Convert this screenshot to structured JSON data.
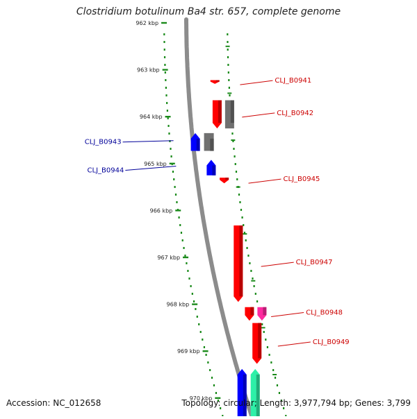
{
  "title": "Clostridium botulinum Ba4 str. 657, complete genome",
  "footer": {
    "accession": "Accession: NC_012658",
    "summary": "Topology: circular; Length: 3,977,794 bp; Genes: 3,799"
  },
  "axis": {
    "unit": "kbp",
    "ticks": [
      "962 kbp",
      "963 kbp",
      "964 kbp",
      "965 kbp",
      "966 kbp",
      "967 kbp",
      "968 kbp",
      "969 kbp",
      "970 kbp"
    ]
  },
  "colors": {
    "forward": "#ff0000",
    "reverse": "#0000ff",
    "pseudo": "#707070",
    "rna": "#ff2aa0",
    "other": "#2ef0a8",
    "tick": "#1a8a1a",
    "backbone": "#8c8c8c",
    "label_forward": "#cc0000",
    "label_reverse": "#000099"
  },
  "genes": [
    {
      "id": "CLJ_B0941",
      "strand": "forward",
      "kind": "forward",
      "start_kbp": 963.22,
      "end_kbp": 963.3
    },
    {
      "id": "CLJ_B0942",
      "strand": "forward",
      "kind": "forward",
      "start_kbp": 963.65,
      "end_kbp": 964.25
    },
    {
      "id": "",
      "strand": "forward",
      "kind": "pseudo",
      "start_kbp": 963.65,
      "end_kbp": 964.25
    },
    {
      "id": "CLJ_B0943",
      "strand": "reverse",
      "kind": "pseudo",
      "start_kbp": 964.35,
      "end_kbp": 964.73
    },
    {
      "id": "",
      "strand": "reverse",
      "kind": "reverse",
      "start_kbp": 964.35,
      "end_kbp": 964.73
    },
    {
      "id": "CLJ_B0944",
      "strand": "reverse",
      "kind": "reverse",
      "start_kbp": 964.92,
      "end_kbp": 965.25
    },
    {
      "id": "CLJ_B0945",
      "strand": "forward",
      "kind": "forward",
      "start_kbp": 965.3,
      "end_kbp": 965.42
    },
    {
      "id": "CLJ_B0947",
      "strand": "forward",
      "kind": "forward",
      "start_kbp": 966.32,
      "end_kbp": 967.95
    },
    {
      "id": "",
      "strand": "forward",
      "kind": "forward",
      "start_kbp": 968.06,
      "end_kbp": 968.35
    },
    {
      "id": "CLJ_B0948",
      "strand": "forward",
      "kind": "rna",
      "start_kbp": 968.06,
      "end_kbp": 968.35
    },
    {
      "id": "CLJ_B0949",
      "strand": "forward",
      "kind": "forward",
      "start_kbp": 968.4,
      "end_kbp": 969.27
    },
    {
      "id": "",
      "strand": "reverse",
      "kind": "other",
      "start_kbp": 969.38,
      "end_kbp": 970.45
    },
    {
      "id": "",
      "strand": "reverse",
      "kind": "reverse",
      "start_kbp": 969.38,
      "end_kbp": 970.45
    }
  ]
}
